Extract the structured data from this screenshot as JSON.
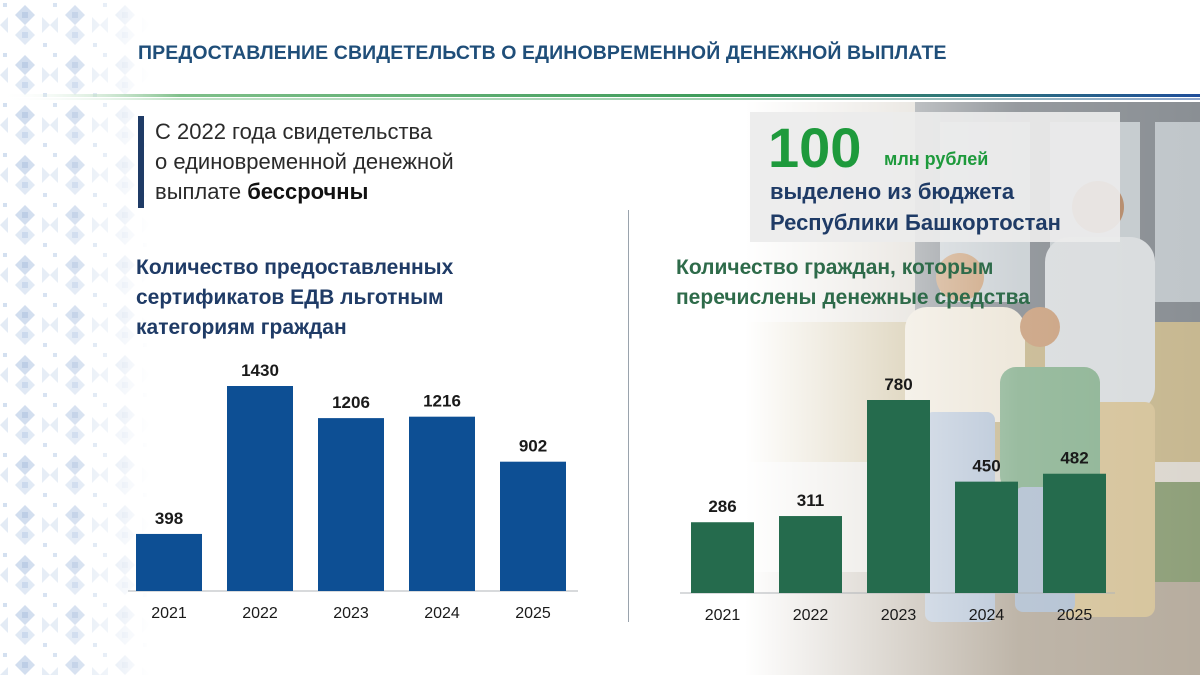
{
  "header": {
    "title": "ПРЕДОСТАВЛЕНИЕ СВИДЕТЕЛЬСТВ О ЕДИНОВРЕМЕННОЙ ДЕНЕЖНОЙ ВЫПЛАТЕ"
  },
  "info": {
    "line1": "С 2022 года свидетельства",
    "line2": "о единовременной денежной",
    "line3_prefix": "выплате ",
    "line3_bold": "бессрочны"
  },
  "highlight": {
    "amount": "100",
    "unit": "млн рублей",
    "text": "выделено  из бюджета\nРеспублики Башкортостан"
  },
  "colors": {
    "bar_blue": "#0d4f94",
    "bar_green": "#256b4d",
    "title_blue": "#1f3b66",
    "accent_green": "#1e9a3c"
  },
  "chart_data": [
    {
      "type": "bar",
      "title": "Количество предоставленных сертификатов ЕДВ льготным категориям граждан",
      "categories": [
        "2021",
        "2022",
        "2023",
        "2024",
        "2025"
      ],
      "values": [
        398,
        1430,
        1206,
        1216,
        902
      ],
      "xlabel": "",
      "ylabel": "",
      "ylim": [
        0,
        1500
      ]
    },
    {
      "type": "bar",
      "title": "Количество граждан, которым перечислены денежные средства",
      "categories": [
        "2021",
        "2022",
        "2023",
        "2024",
        "2025"
      ],
      "values": [
        286,
        311,
        780,
        450,
        482
      ],
      "xlabel": "",
      "ylabel": "",
      "ylim": [
        0,
        900
      ]
    }
  ]
}
